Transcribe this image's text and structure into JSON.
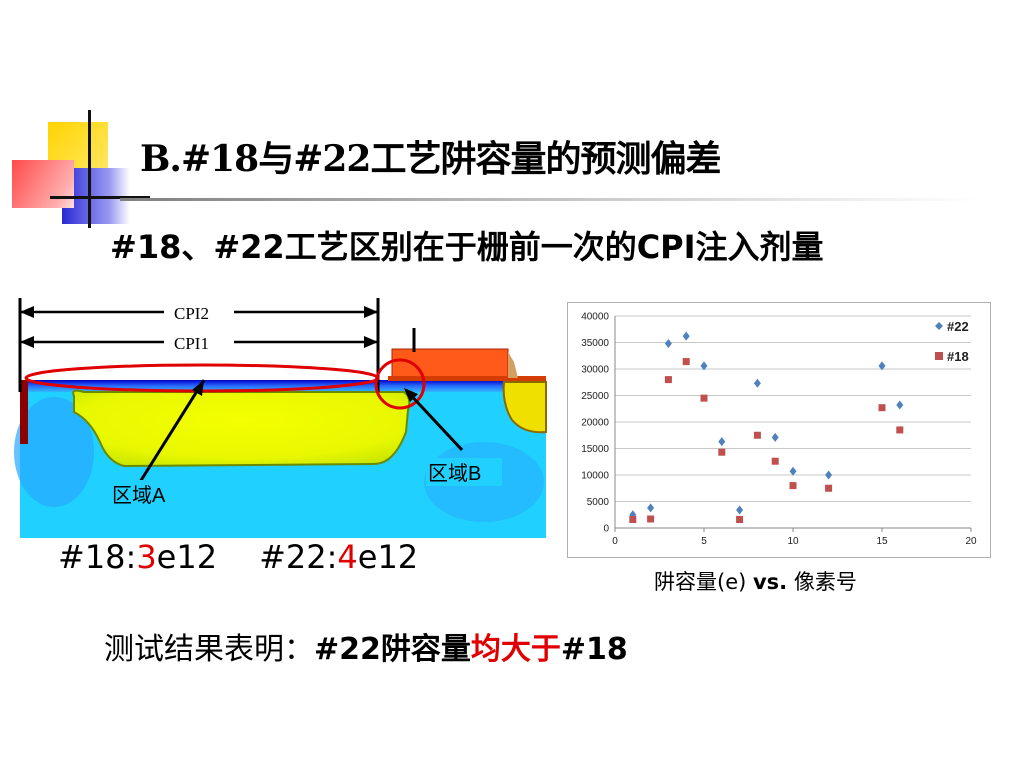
{
  "slide": {
    "title": "B.#18与#22工艺阱容量的预测偏差",
    "subtitle": "#18、#22工艺区别在于栅前一次的CPI注入剂量"
  },
  "diagram": {
    "label_cpi2": "CPI2",
    "label_cpi1": "CPI1",
    "label_region_a": "区域A",
    "label_region_b": "区域B"
  },
  "dose": {
    "p18_prefix": "#18:",
    "p18_value": "3",
    "p18_suffix": "e12",
    "p22_prefix": "#22:",
    "p22_value": "4",
    "p22_suffix": "e12"
  },
  "conclusion": {
    "prefix": "测试结果表明：",
    "bold_part": "#22阱容量",
    "red_part": "均大于",
    "tail": "#18"
  },
  "chart_caption": {
    "normal": "阱容量(e) ",
    "bold": "vs.",
    "tail": " 像素号"
  },
  "colors": {
    "series_22": "#4f81bd",
    "series_18": "#c0504d",
    "accent_red": "#e00000"
  },
  "chart_data": {
    "type": "scatter",
    "title": "",
    "xlabel": "",
    "ylabel": "",
    "xlim": [
      0,
      20
    ],
    "ylim": [
      0,
      40000
    ],
    "xticks": [
      0,
      5,
      10,
      15,
      20
    ],
    "yticks": [
      0,
      5000,
      10000,
      15000,
      20000,
      25000,
      30000,
      35000,
      40000
    ],
    "grid": "horizontal",
    "legend_position": "top-right",
    "series": [
      {
        "name": "#22",
        "marker": "diamond",
        "color": "#4f81bd",
        "x": [
          1,
          2,
          3,
          4,
          5,
          6,
          7,
          8,
          9,
          10,
          12,
          15,
          16
        ],
        "y": [
          2500,
          3800,
          34800,
          36200,
          30600,
          16300,
          3400,
          27300,
          17100,
          10700,
          10000,
          30600,
          23200
        ]
      },
      {
        "name": "#18",
        "marker": "square",
        "color": "#c0504d",
        "x": [
          1,
          2,
          3,
          4,
          5,
          6,
          7,
          8,
          9,
          10,
          12,
          15,
          16
        ],
        "y": [
          1600,
          1700,
          28000,
          31400,
          24500,
          14300,
          1600,
          17500,
          12600,
          8000,
          7500,
          22700,
          18500
        ]
      }
    ]
  }
}
